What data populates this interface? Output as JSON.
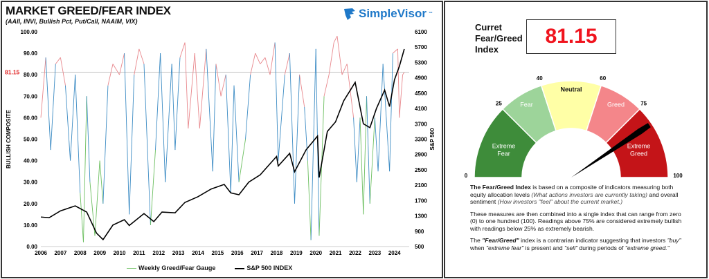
{
  "header": {
    "title": "MARKET GREED/FEAR INDEX",
    "subtitle": "(AAII, INVI, Bullish Pct, Put/Call, NAAIM, VIX)",
    "brand": "SimpleVisor",
    "brand_tm": "™"
  },
  "chart_data": {
    "type": "line",
    "title": "MARKET GREED/FEAR INDEX",
    "y_left_label": "BULLISH COMPOSITE",
    "y_right_label": "S&P 500",
    "y_left_range": [
      0,
      100
    ],
    "y_left_ticks": [
      "0.00",
      "10.00",
      "20.00",
      "30.00",
      "40.00",
      "50.00",
      "60.00",
      "70.00",
      "80.00",
      "90.00",
      "100.00"
    ],
    "y_right_range": [
      500,
      6100
    ],
    "y_right_ticks": [
      "500",
      "900",
      "1300",
      "1700",
      "2100",
      "2500",
      "2900",
      "3300",
      "3700",
      "4100",
      "4500",
      "4900",
      "5300",
      "5700",
      "6100"
    ],
    "x_ticks": [
      "2006",
      "2007",
      "2008",
      "2009",
      "2010",
      "2011",
      "2012",
      "2013",
      "2014",
      "2015",
      "2016",
      "2017",
      "2018",
      "2019",
      "2020",
      "2021",
      "2022",
      "2023",
      "2024"
    ],
    "current_marker": {
      "label": "81.15",
      "value": 81.15,
      "color": "#e02020"
    },
    "grid": false,
    "legend_position": "bottom",
    "zone_colors": {
      "greed": "#e8878c",
      "neutral": "#3d8cc4",
      "fear": "#6cbf60"
    },
    "series": [
      {
        "name": "Weekly Greed/Fear Gauge",
        "axis": "left",
        "color": "#6cbf60",
        "x": [
          "2006-01",
          "2006-04",
          "2006-07",
          "2006-10",
          "2007-01",
          "2007-04",
          "2007-07",
          "2007-10",
          "2008-01",
          "2008-03",
          "2008-05",
          "2008-07",
          "2008-10",
          "2009-01",
          "2009-03",
          "2009-06",
          "2009-09",
          "2010-01",
          "2010-04",
          "2010-07",
          "2010-10",
          "2011-01",
          "2011-04",
          "2011-08",
          "2011-11",
          "2012-02",
          "2012-05",
          "2012-09",
          "2012-11",
          "2013-02",
          "2013-05",
          "2013-07",
          "2013-11",
          "2014-02",
          "2014-06",
          "2014-10",
          "2014-12",
          "2015-03",
          "2015-06",
          "2015-09",
          "2015-11",
          "2016-02",
          "2016-06",
          "2016-09",
          "2016-12",
          "2017-03",
          "2017-06",
          "2017-09",
          "2017-12",
          "2018-02",
          "2018-06",
          "2018-09",
          "2018-12",
          "2019-03",
          "2019-06",
          "2019-08",
          "2019-10",
          "2020-01",
          "2020-03",
          "2020-06",
          "2020-09",
          "2020-12",
          "2021-02",
          "2021-05",
          "2021-08",
          "2021-12",
          "2022-02",
          "2022-04",
          "2022-06",
          "2022-08",
          "2022-10",
          "2023-01",
          "2023-03",
          "2023-06",
          "2023-10",
          "2023-12",
          "2024-03",
          "2024-04",
          "2024-06",
          "2024-07"
        ],
        "values": [
          60,
          88,
          45,
          85,
          88,
          75,
          40,
          80,
          25,
          2,
          70,
          30,
          5,
          40,
          20,
          75,
          85,
          80,
          90,
          15,
          80,
          92,
          85,
          10,
          45,
          90,
          30,
          85,
          45,
          88,
          95,
          55,
          90,
          55,
          92,
          35,
          85,
          70,
          80,
          25,
          75,
          30,
          50,
          80,
          90,
          85,
          88,
          80,
          95,
          40,
          80,
          90,
          20,
          80,
          65,
          40,
          3,
          92,
          5,
          70,
          80,
          95,
          98,
          80,
          85,
          60,
          30,
          60,
          15,
          70,
          20,
          60,
          35,
          85,
          35,
          90,
          92,
          60,
          80,
          81.15
        ]
      },
      {
        "name": "S&P 500 INDEX",
        "axis": "right",
        "color": "#000000",
        "x": [
          "2006-01",
          "2006-06",
          "2007-01",
          "2007-10",
          "2008-05",
          "2008-11",
          "2009-03",
          "2009-09",
          "2010-04",
          "2010-07",
          "2011-04",
          "2011-10",
          "2012-03",
          "2012-11",
          "2013-05",
          "2014-01",
          "2014-09",
          "2015-05",
          "2015-09",
          "2016-02",
          "2016-08",
          "2017-03",
          "2018-01",
          "2018-02",
          "2018-09",
          "2018-12",
          "2019-07",
          "2020-02",
          "2020-03",
          "2020-08",
          "2021-01",
          "2021-06",
          "2022-01",
          "2022-06",
          "2022-10",
          "2023-02",
          "2023-07",
          "2023-10",
          "2024-01",
          "2024-04",
          "2024-07"
        ],
        "values": [
          1270,
          1250,
          1430,
          1560,
          1400,
          850,
          680,
          1060,
          1200,
          1050,
          1360,
          1150,
          1400,
          1380,
          1650,
          1800,
          2000,
          2120,
          1900,
          1850,
          2180,
          2370,
          2850,
          2600,
          2930,
          2450,
          3020,
          3380,
          2300,
          3500,
          3750,
          4300,
          4780,
          3700,
          3600,
          4100,
          4580,
          4150,
          4850,
          5200,
          5650
        ]
      }
    ]
  },
  "legend": {
    "gauge": "Weekly Greed/Fear Gauge",
    "sp500": "S&P 500 INDEX"
  },
  "current": {
    "label_line1": "Curret",
    "label_line2": "Fear/Greed",
    "label_line3": "Index",
    "value": "81.15",
    "value_number": 81.15
  },
  "gauge": {
    "zones": [
      {
        "label1": "Extreme",
        "label2": "Fear",
        "from": 0,
        "to": 25,
        "color": "#3e8c3a"
      },
      {
        "label1": "Fear",
        "label2": "",
        "from": 25,
        "to": 40,
        "color": "#9dd49a"
      },
      {
        "label1": "Neutral",
        "label2": "",
        "from": 40,
        "to": 60,
        "color": "#ffffa6"
      },
      {
        "label1": "Greed",
        "label2": "",
        "from": 60,
        "to": 75,
        "color": "#f4868a"
      },
      {
        "label1": "Extreme",
        "label2": "Greed",
        "from": 75,
        "to": 100,
        "color": "#c41418"
      }
    ],
    "ticks": [
      "0",
      "25",
      "40",
      "60",
      "75",
      "100"
    ]
  },
  "description": {
    "p1_bold": "The Fear/Greed Index",
    "p1_a": " is based on a composite of indicators measuring both equity allocation levels ",
    "p1_i1": "(What actions investors are currently taking)",
    "p1_b": " and overall sentiment ",
    "p1_i2": "(How investors \"feel\" about the current market.)",
    "p2": "These measures are then combined into a single index that can range from zero (0) to one hundred (100). Readings above 75% are considered extremely bullish with readings below 25% as extremely bearish.",
    "p3_a": "The ",
    "p3_bi": "\"Fear/Greed\"",
    "p3_b": " index is a contrarian indicator suggesting that investors ",
    "p3_i1": "\"buy\"",
    "p3_c": " when ",
    "p3_i2": "\"extreme fear\"",
    "p3_d": " is present and ",
    "p3_i3": "\"sell\"",
    "p3_e": " during periods of ",
    "p3_i4": "\"extreme greed.\""
  }
}
